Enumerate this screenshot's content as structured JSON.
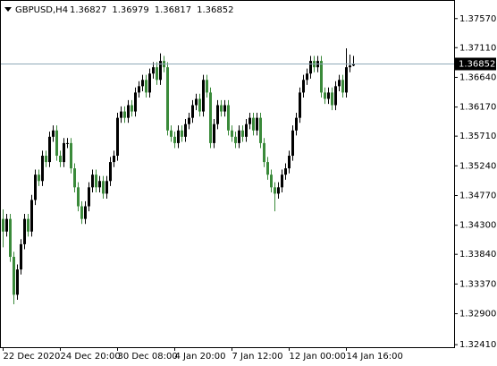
{
  "chart_data": {
    "type": "candlestick",
    "symbol": "GBPUSD,H4",
    "up_color": "#000000",
    "down_color": "#3a8a3a",
    "bid_line_color": "#8fa9b8",
    "ylim": [
      1.3237,
      1.3785
    ],
    "yticks": [
      {
        "value": 1.3757,
        "label": "1.37570"
      },
      {
        "value": 1.3711,
        "label": "1.37110"
      },
      {
        "value": 1.3664,
        "label": "1.36640"
      },
      {
        "value": 1.3617,
        "label": "1.36170"
      },
      {
        "value": 1.3571,
        "label": "1.35710"
      },
      {
        "value": 1.3524,
        "label": "1.35240"
      },
      {
        "value": 1.3477,
        "label": "1.34770"
      },
      {
        "value": 1.343,
        "label": "1.34300"
      },
      {
        "value": 1.3384,
        "label": "1.33840"
      },
      {
        "value": 1.3337,
        "label": "1.33370"
      },
      {
        "value": 1.329,
        "label": "1.32900"
      },
      {
        "value": 1.3241,
        "label": "1.32410"
      }
    ],
    "categories": [
      "22 Dec 2020",
      null,
      null,
      null,
      null,
      null,
      null,
      null,
      null,
      null,
      null,
      null,
      null,
      null,
      null,
      null,
      "24 Dec 20:00",
      null,
      null,
      null,
      null,
      null,
      null,
      null,
      null,
      null,
      null,
      null,
      null,
      null,
      null,
      null,
      "30 Dec 08:00",
      null,
      null,
      null,
      null,
      null,
      null,
      null,
      null,
      null,
      null,
      null,
      null,
      null,
      null,
      null,
      "4 Jan 20:00",
      null,
      null,
      null,
      null,
      null,
      null,
      null,
      null,
      null,
      null,
      null,
      null,
      null,
      null,
      null,
      "7 Jan 12:00",
      null,
      null,
      null,
      null,
      null,
      null,
      null,
      null,
      null,
      null,
      null,
      null,
      null,
      null,
      null,
      "12 Jan 00:00",
      null,
      null,
      null,
      null,
      null,
      null,
      null,
      null,
      null,
      null,
      null,
      null,
      null,
      null,
      null,
      "14 Jan 16:00",
      null,
      null
    ],
    "open": [
      1.344,
      1.342,
      1.344,
      1.338,
      1.332,
      1.336,
      1.34,
      1.344,
      1.342,
      1.347,
      1.351,
      1.35,
      1.354,
      1.353,
      1.357,
      1.358,
      1.354,
      1.353,
      1.356,
      1.356,
      1.352,
      1.349,
      1.346,
      1.344,
      1.346,
      1.349,
      1.351,
      1.349,
      1.35,
      1.348,
      1.35,
      1.353,
      1.354,
      1.36,
      1.361,
      1.36,
      1.362,
      1.361,
      1.364,
      1.365,
      1.366,
      1.364,
      1.367,
      1.368,
      1.366,
      1.369,
      1.368,
      1.358,
      1.357,
      1.356,
      1.358,
      1.357,
      1.359,
      1.36,
      1.362,
      1.363,
      1.361,
      1.366,
      1.364,
      1.356,
      1.359,
      1.362,
      1.361,
      1.362,
      1.358,
      1.357,
      1.356,
      1.358,
      1.357,
      1.359,
      1.36,
      1.358,
      1.36,
      1.356,
      1.353,
      1.351,
      1.349,
      1.348,
      1.349,
      1.351,
      1.352,
      1.354,
      1.358,
      1.36,
      1.364,
      1.366,
      1.367,
      1.369,
      1.368,
      1.369,
      1.364,
      1.363,
      1.364,
      1.362,
      1.365,
      1.366,
      1.364,
      1.368,
      1.36827
    ],
    "high": [
      1.3455,
      1.3448,
      1.3448,
      1.3388,
      1.3368,
      1.3408,
      1.3448,
      1.3448,
      1.3478,
      1.3518,
      1.3518,
      1.3548,
      1.3548,
      1.3578,
      1.3588,
      1.3588,
      1.3548,
      1.3568,
      1.3568,
      1.3568,
      1.3528,
      1.3498,
      1.3468,
      1.3468,
      1.3498,
      1.3518,
      1.3518,
      1.3508,
      1.3508,
      1.3508,
      1.3538,
      1.3548,
      1.3608,
      1.3618,
      1.3618,
      1.3628,
      1.3628,
      1.3648,
      1.3658,
      1.3668,
      1.3668,
      1.3678,
      1.3688,
      1.3688,
      1.3702,
      1.3698,
      1.3688,
      1.3588,
      1.3578,
      1.3588,
      1.3588,
      1.3598,
      1.3608,
      1.3628,
      1.3638,
      1.3638,
      1.3668,
      1.3668,
      1.3648,
      1.3598,
      1.3628,
      1.3628,
      1.3628,
      1.3628,
      1.3588,
      1.3578,
      1.3588,
      1.3588,
      1.3598,
      1.3608,
      1.3608,
      1.3608,
      1.3608,
      1.3568,
      1.3538,
      1.3518,
      1.3498,
      1.3498,
      1.3518,
      1.3528,
      1.3548,
      1.3588,
      1.3608,
      1.3648,
      1.3668,
      1.3678,
      1.3698,
      1.3698,
      1.3698,
      1.3698,
      1.3648,
      1.3648,
      1.3648,
      1.3658,
      1.3668,
      1.3668,
      1.371,
      1.37,
      1.36979
    ],
    "low": [
      1.3395,
      1.3412,
      1.3372,
      1.3305,
      1.3312,
      1.3352,
      1.3392,
      1.3412,
      1.3412,
      1.3462,
      1.3492,
      1.3492,
      1.3522,
      1.3522,
      1.3562,
      1.3532,
      1.3522,
      1.3522,
      1.3552,
      1.3512,
      1.3482,
      1.3452,
      1.3432,
      1.3432,
      1.3452,
      1.3482,
      1.3482,
      1.3482,
      1.3472,
      1.3472,
      1.3492,
      1.3522,
      1.3532,
      1.3592,
      1.3592,
      1.3592,
      1.3602,
      1.3602,
      1.3632,
      1.3642,
      1.3632,
      1.3632,
      1.3662,
      1.3652,
      1.3652,
      1.3672,
      1.3572,
      1.3562,
      1.3552,
      1.3552,
      1.3562,
      1.3562,
      1.3582,
      1.3592,
      1.3612,
      1.3602,
      1.3602,
      1.3632,
      1.3552,
      1.3552,
      1.3582,
      1.3602,
      1.3602,
      1.3572,
      1.3562,
      1.3552,
      1.3552,
      1.3562,
      1.3562,
      1.3582,
      1.3572,
      1.3572,
      1.3552,
      1.3522,
      1.3502,
      1.3482,
      1.3452,
      1.3472,
      1.3482,
      1.3502,
      1.3512,
      1.3532,
      1.3572,
      1.3592,
      1.3632,
      1.3652,
      1.3662,
      1.3672,
      1.3672,
      1.3632,
      1.3622,
      1.3622,
      1.3612,
      1.3612,
      1.3642,
      1.3632,
      1.3632,
      1.3672,
      1.36817
    ],
    "close": [
      1.342,
      1.344,
      1.338,
      1.332,
      1.336,
      1.34,
      1.344,
      1.342,
      1.347,
      1.351,
      1.35,
      1.354,
      1.353,
      1.357,
      1.358,
      1.354,
      1.353,
      1.356,
      1.356,
      1.352,
      1.349,
      1.346,
      1.344,
      1.346,
      1.349,
      1.351,
      1.349,
      1.35,
      1.348,
      1.35,
      1.353,
      1.354,
      1.36,
      1.361,
      1.36,
      1.362,
      1.361,
      1.364,
      1.365,
      1.366,
      1.364,
      1.367,
      1.368,
      1.366,
      1.369,
      1.368,
      1.358,
      1.357,
      1.356,
      1.358,
      1.357,
      1.359,
      1.36,
      1.362,
      1.363,
      1.361,
      1.366,
      1.364,
      1.356,
      1.359,
      1.362,
      1.361,
      1.362,
      1.358,
      1.357,
      1.356,
      1.358,
      1.357,
      1.359,
      1.36,
      1.358,
      1.36,
      1.356,
      1.353,
      1.351,
      1.349,
      1.348,
      1.349,
      1.351,
      1.352,
      1.354,
      1.358,
      1.36,
      1.364,
      1.366,
      1.367,
      1.369,
      1.368,
      1.369,
      1.364,
      1.363,
      1.364,
      1.362,
      1.365,
      1.366,
      1.364,
      1.368,
      1.36827,
      1.36852
    ]
  }
}
